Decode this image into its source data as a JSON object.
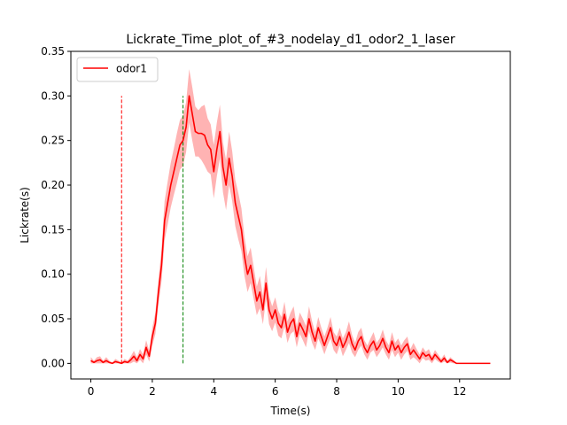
{
  "chart_data": {
    "type": "line",
    "title": "Lickrate_Time_plot_of_#3_nodelay_d1_odor2_1_laser",
    "xlabel": "Time(s)",
    "ylabel": "Lickrate(s)",
    "xlim": [
      -0.65,
      13.65
    ],
    "ylim": [
      -0.0175,
      0.35
    ],
    "x_ticks": [
      0,
      2,
      4,
      6,
      8,
      10,
      12
    ],
    "y_ticks": [
      0.0,
      0.05,
      0.1,
      0.15,
      0.2,
      0.25,
      0.3,
      0.35
    ],
    "x_tick_labels": [
      "0",
      "2",
      "4",
      "6",
      "8",
      "10",
      "12"
    ],
    "y_tick_labels": [
      "0.00",
      "0.05",
      "0.10",
      "0.15",
      "0.20",
      "0.25",
      "0.30",
      "0.35"
    ],
    "grid": false,
    "legend": {
      "placement": "top-left",
      "entries": [
        "odor1"
      ]
    },
    "series": [
      {
        "name": "odor1",
        "color": "#ff0000",
        "band_color": "#ff8080",
        "x": [
          0.0,
          0.1,
          0.2,
          0.3,
          0.4,
          0.5,
          0.6,
          0.7,
          0.8,
          0.9,
          1.0,
          1.1,
          1.2,
          1.3,
          1.4,
          1.5,
          1.6,
          1.7,
          1.8,
          1.9,
          2.0,
          2.1,
          2.2,
          2.3,
          2.4,
          2.5,
          2.6,
          2.7,
          2.8,
          2.9,
          3.0,
          3.1,
          3.2,
          3.3,
          3.4,
          3.5,
          3.6,
          3.7,
          3.8,
          3.9,
          4.0,
          4.1,
          4.2,
          4.3,
          4.4,
          4.5,
          4.6,
          4.7,
          4.8,
          4.9,
          5.0,
          5.1,
          5.2,
          5.3,
          5.4,
          5.5,
          5.6,
          5.7,
          5.8,
          5.9,
          6.0,
          6.1,
          6.2,
          6.3,
          6.4,
          6.5,
          6.6,
          6.7,
          6.8,
          6.9,
          7.0,
          7.1,
          7.2,
          7.3,
          7.4,
          7.5,
          7.6,
          7.7,
          7.8,
          7.9,
          8.0,
          8.1,
          8.2,
          8.3,
          8.4,
          8.5,
          8.6,
          8.7,
          8.8,
          8.9,
          9.0,
          9.1,
          9.2,
          9.3,
          9.4,
          9.5,
          9.6,
          9.7,
          9.8,
          9.9,
          10.0,
          10.1,
          10.2,
          10.3,
          10.4,
          10.5,
          10.6,
          10.7,
          10.8,
          10.9,
          11.0,
          11.1,
          11.2,
          11.3,
          11.4,
          11.5,
          11.6,
          11.7,
          11.8,
          11.9,
          12.0,
          12.5,
          13.0
        ],
        "mean": [
          0.003,
          0.001,
          0.003,
          0.004,
          0.001,
          0.003,
          0.001,
          0.0,
          0.002,
          0.001,
          0.0,
          0.002,
          0.001,
          0.004,
          0.008,
          0.003,
          0.01,
          0.005,
          0.018,
          0.008,
          0.03,
          0.045,
          0.08,
          0.11,
          0.16,
          0.18,
          0.2,
          0.215,
          0.23,
          0.245,
          0.25,
          0.265,
          0.3,
          0.28,
          0.26,
          0.258,
          0.258,
          0.256,
          0.245,
          0.24,
          0.215,
          0.24,
          0.26,
          0.22,
          0.2,
          0.23,
          0.21,
          0.18,
          0.165,
          0.15,
          0.12,
          0.1,
          0.11,
          0.09,
          0.07,
          0.08,
          0.06,
          0.09,
          0.06,
          0.05,
          0.06,
          0.045,
          0.04,
          0.055,
          0.035,
          0.045,
          0.05,
          0.03,
          0.045,
          0.038,
          0.03,
          0.05,
          0.035,
          0.025,
          0.04,
          0.03,
          0.02,
          0.03,
          0.04,
          0.025,
          0.02,
          0.03,
          0.018,
          0.025,
          0.035,
          0.022,
          0.015,
          0.025,
          0.03,
          0.018,
          0.012,
          0.02,
          0.025,
          0.015,
          0.02,
          0.028,
          0.018,
          0.012,
          0.025,
          0.015,
          0.02,
          0.012,
          0.018,
          0.022,
          0.01,
          0.015,
          0.01,
          0.005,
          0.012,
          0.008,
          0.01,
          0.004,
          0.01,
          0.006,
          0.002,
          0.006,
          0.001,
          0.004,
          0.002,
          0.0,
          0.0,
          0.0,
          0.0
        ],
        "band": [
          0.004,
          0.002,
          0.004,
          0.004,
          0.002,
          0.004,
          0.002,
          0.001,
          0.003,
          0.002,
          0.001,
          0.003,
          0.002,
          0.004,
          0.006,
          0.004,
          0.006,
          0.005,
          0.008,
          0.006,
          0.01,
          0.012,
          0.014,
          0.018,
          0.022,
          0.024,
          0.025,
          0.026,
          0.028,
          0.028,
          0.028,
          0.028,
          0.03,
          0.03,
          0.028,
          0.026,
          0.03,
          0.034,
          0.03,
          0.028,
          0.03,
          0.03,
          0.03,
          0.028,
          0.028,
          0.03,
          0.028,
          0.026,
          0.026,
          0.024,
          0.022,
          0.02,
          0.02,
          0.018,
          0.016,
          0.018,
          0.016,
          0.018,
          0.016,
          0.014,
          0.014,
          0.014,
          0.012,
          0.014,
          0.012,
          0.012,
          0.014,
          0.012,
          0.012,
          0.012,
          0.012,
          0.014,
          0.012,
          0.01,
          0.012,
          0.01,
          0.01,
          0.01,
          0.012,
          0.01,
          0.01,
          0.01,
          0.01,
          0.01,
          0.012,
          0.01,
          0.008,
          0.01,
          0.01,
          0.008,
          0.008,
          0.008,
          0.01,
          0.008,
          0.008,
          0.01,
          0.008,
          0.008,
          0.01,
          0.008,
          0.008,
          0.008,
          0.008,
          0.008,
          0.006,
          0.008,
          0.006,
          0.005,
          0.006,
          0.005,
          0.006,
          0.004,
          0.005,
          0.004,
          0.003,
          0.004,
          0.002,
          0.003,
          0.002,
          0.0,
          0.0,
          0.0,
          0.0
        ]
      }
    ],
    "vlines": [
      {
        "x": 1.0,
        "y0": 0.0,
        "y1": 0.3,
        "color": "#ff0000",
        "style": "dashed"
      },
      {
        "x": 3.0,
        "y0": 0.0,
        "y1": 0.3,
        "color": "#008000",
        "style": "dashed"
      }
    ]
  }
}
